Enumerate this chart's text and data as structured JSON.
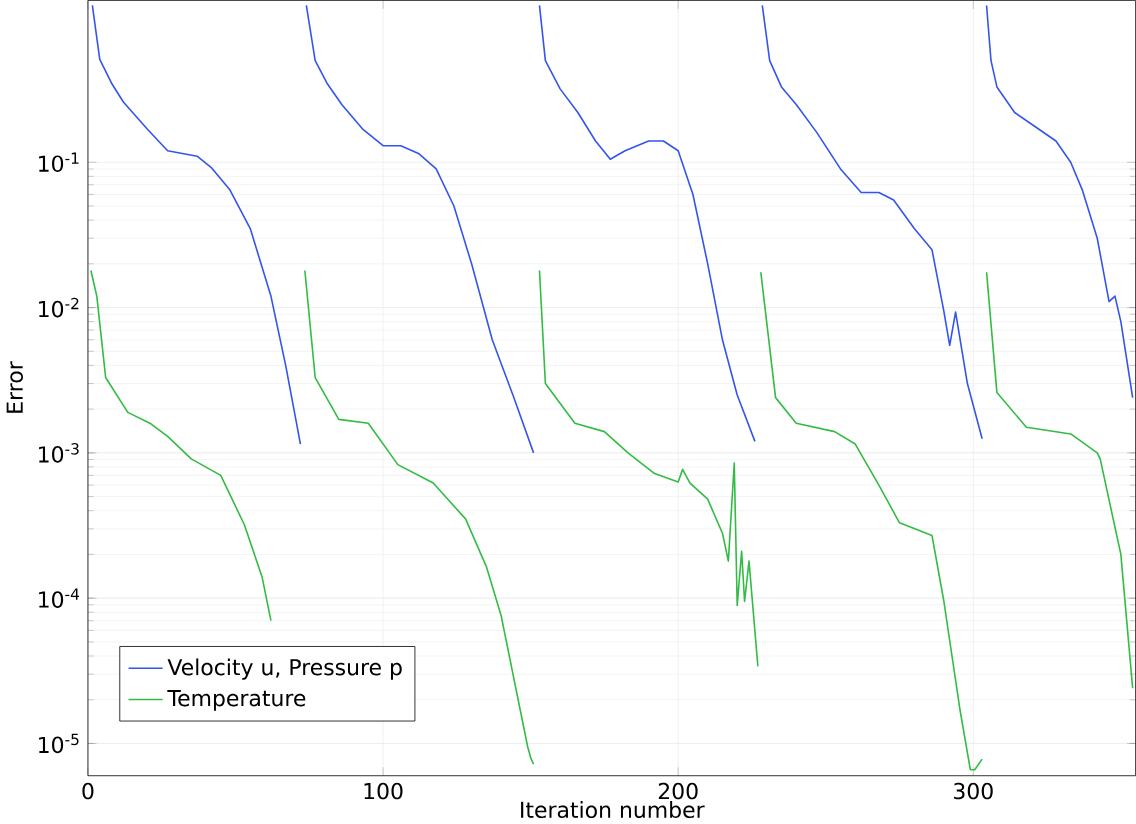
{
  "chart_data": {
    "type": "line",
    "xlabel": "Iteration number",
    "ylabel": "Error",
    "log": "y",
    "xlim": [
      0,
      355
    ],
    "ylim": [
      6e-06,
      1.3
    ],
    "xticks": [
      0,
      100,
      200,
      300
    ],
    "yticks": [
      {
        "value": 1e-05,
        "label": "10$^{-5}$"
      },
      {
        "value": 0.0001,
        "label": "10$^{-4}$"
      },
      {
        "value": 0.001,
        "label": "10$^{-3}$"
      },
      {
        "value": 0.01,
        "label": "10$^{-2}$"
      },
      {
        "value": 0.1,
        "label": "10$^{-1}$"
      }
    ],
    "grid": true,
    "legend": "bottom left",
    "series": [
      {
        "name": "Velocity u, Pressure p",
        "color": "#3355ee",
        "x": [
          1.5,
          4,
          8,
          12,
          20,
          27,
          32,
          37,
          42,
          48,
          55,
          62,
          67,
          72,
          73,
          74,
          77,
          81,
          86,
          93,
          100,
          106,
          112,
          118,
          124,
          130,
          137,
          144,
          151,
          152,
          153,
          155,
          160,
          166,
          172,
          177,
          182,
          190,
          195,
          200,
          205,
          210,
          215,
          220,
          226,
          227,
          228.5,
          231,
          235,
          240,
          247,
          255,
          262,
          268,
          273,
          280,
          286,
          290,
          292,
          294,
          298,
          303,
          304,
          304.5,
          306,
          308,
          314,
          322,
          328,
          333,
          337,
          342,
          346,
          348,
          350,
          354
        ],
        "values": [
          1.2,
          0.51,
          0.35,
          0.26,
          0.17,
          0.12,
          0.115,
          0.11,
          0.091,
          0.065,
          0.035,
          0.012,
          0.004,
          0.00115,
          null,
          1.2,
          0.5,
          0.35,
          0.25,
          0.17,
          0.13,
          0.13,
          0.115,
          0.09,
          0.05,
          0.02,
          0.006,
          0.0025,
          0.001,
          null,
          1.2,
          0.5,
          0.32,
          0.22,
          0.14,
          0.105,
          0.12,
          0.14,
          0.14,
          0.12,
          0.06,
          0.02,
          0.006,
          0.0025,
          0.0012,
          null,
          1.2,
          0.5,
          0.33,
          0.25,
          0.16,
          0.09,
          0.062,
          0.062,
          0.055,
          0.035,
          0.025,
          0.0095,
          0.0055,
          0.0093,
          0.003,
          0.00125,
          null,
          1.2,
          0.5,
          0.33,
          0.22,
          0.17,
          0.14,
          0.1,
          0.064,
          0.03,
          0.011,
          0.012,
          0.008,
          0.0024
        ]
      },
      {
        "name": "Temperature",
        "color": "#33bb44",
        "x": [
          1,
          3,
          6,
          13.5,
          21,
          27,
          35,
          45,
          53,
          59,
          62,
          63,
          73.5,
          77,
          85,
          95,
          105,
          117,
          128,
          135,
          140,
          149,
          150,
          151,
          152,
          153,
          155,
          165,
          175,
          183,
          192,
          200,
          201.5,
          204,
          210,
          215,
          217,
          219,
          220,
          221.5,
          222.5,
          224,
          227,
          227.5,
          228,
          233,
          240,
          253,
          260,
          268,
          275,
          286,
          290,
          295.5,
          299,
          300.5,
          303,
          304,
          304.5,
          308,
          318,
          333,
          342,
          343,
          350,
          354
        ],
        "values": [
          0.018,
          0.012,
          0.0033,
          0.0019,
          0.0016,
          0.0013,
          0.00091,
          0.0007,
          0.00032,
          0.00014,
          7e-05,
          null,
          0.018,
          0.0033,
          0.0017,
          0.0016,
          0.00083,
          0.00062,
          0.00035,
          0.000165,
          7.6e-05,
          9.5e-06,
          8e-06,
          7.2e-06,
          null,
          0.018,
          0.003,
          0.0016,
          0.0014,
          0.001,
          0.00072,
          0.00063,
          0.00077,
          0.00062,
          0.00048,
          0.00028,
          0.00018,
          0.00085,
          8.9e-05,
          0.00021,
          9.5e-05,
          0.00018,
          3.4e-05,
          null,
          0.0175,
          0.0024,
          0.0016,
          0.0014,
          0.00115,
          0.0006,
          0.00033,
          0.00027,
          9.6e-05,
          1.7e-05,
          6.6e-06,
          6.6e-06,
          7.8e-06,
          null,
          0.0175,
          0.0026,
          0.0015,
          0.00135,
          0.001,
          0.00091,
          0.0002,
          2.4e-05
        ]
      }
    ]
  }
}
